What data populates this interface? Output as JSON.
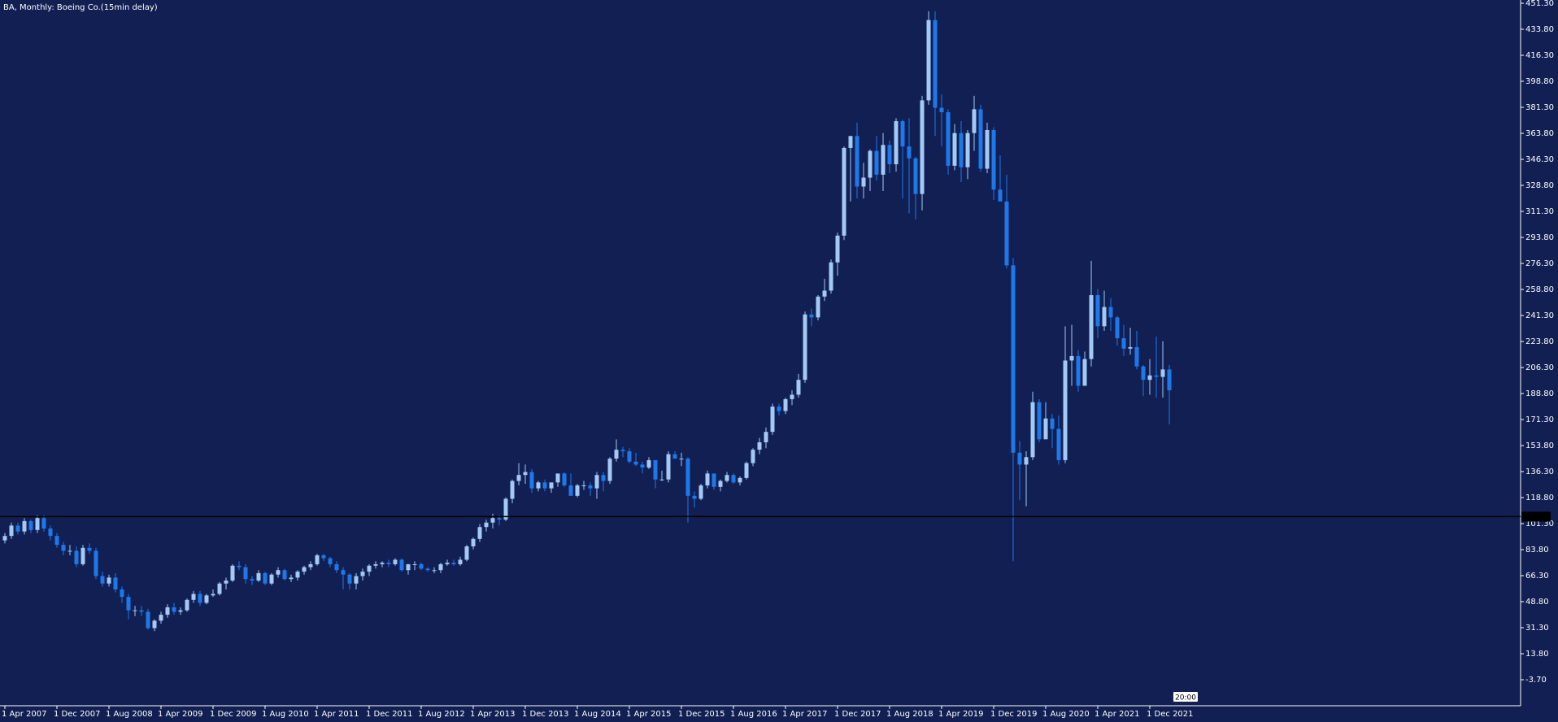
{
  "chart_data": {
    "type": "candlestick",
    "title": "BA, Monthly:  Boeing Co.(15min delay)",
    "categories": [
      "1 Apr 2007",
      null,
      null,
      null,
      null,
      null,
      null,
      null,
      "1 Dec 2007",
      null,
      null,
      null,
      null,
      null,
      null,
      null,
      "1 Aug 2008",
      null,
      null,
      null,
      null,
      null,
      null,
      null,
      "1 Apr 2009",
      null,
      null,
      null,
      null,
      null,
      null,
      null,
      "1 Dec 2009",
      null,
      null,
      null,
      null,
      null,
      null,
      null,
      "1 Aug 2010",
      null,
      null,
      null,
      null,
      null,
      null,
      null,
      "1 Apr 2011",
      null,
      null,
      null,
      null,
      null,
      null,
      null,
      "1 Dec 2011",
      null,
      null,
      null,
      null,
      null,
      null,
      null,
      "1 Aug 2012",
      null,
      null,
      null,
      null,
      null,
      null,
      null,
      "1 Apr 2013",
      null,
      null,
      null,
      null,
      null,
      null,
      null,
      "1 Dec 2013",
      null,
      null,
      null,
      null,
      null,
      null,
      null,
      "1 Aug 2014",
      null,
      null,
      null,
      null,
      null,
      null,
      null,
      "1 Apr 2015",
      null,
      null,
      null,
      null,
      null,
      null,
      null,
      "1 Dec 2015",
      null,
      null,
      null,
      null,
      null,
      null,
      null,
      "1 Aug 2016",
      null,
      null,
      null,
      null,
      null,
      null,
      null,
      "1 Apr 2017",
      null,
      null,
      null,
      null,
      null,
      null,
      null,
      "1 Dec 2017",
      null,
      null,
      null,
      null,
      null,
      null,
      null,
      "1 Aug 2018",
      null,
      null,
      null,
      null,
      null,
      null,
      null,
      "1 Apr 2019",
      null,
      null,
      null,
      null,
      null,
      null,
      null,
      "1 Dec 2019",
      null,
      null,
      null,
      null,
      null,
      null,
      null,
      "1 Aug 2020",
      null,
      null,
      null,
      null,
      null,
      null,
      null,
      "1 Apr 2021",
      null,
      null,
      null,
      null,
      null,
      null,
      null,
      "1 Dec 2021",
      null,
      null,
      null
    ],
    "open": [
      90,
      93,
      100,
      96,
      103,
      97,
      105,
      98,
      93,
      87,
      83,
      83,
      74,
      85,
      83,
      66,
      61,
      65,
      57,
      52,
      43,
      43,
      42,
      31,
      36,
      40,
      45,
      42,
      43,
      50,
      54,
      48,
      53,
      54,
      61,
      63,
      73,
      72,
      64,
      63,
      68,
      61,
      67,
      70,
      64,
      65,
      69,
      72,
      74,
      80,
      78,
      74,
      70,
      67,
      61,
      66,
      69,
      73,
      74,
      75,
      74,
      77,
      70,
      74,
      74,
      71,
      70,
      70,
      74,
      75,
      74,
      77,
      86,
      91,
      99,
      102,
      105,
      104,
      118,
      130,
      134,
      136,
      125,
      129,
      125,
      129,
      135,
      127,
      120,
      127,
      127,
      125,
      134,
      130,
      145,
      151,
      150,
      143,
      141,
      139,
      144,
      131,
      131,
      148,
      145,
      145,
      120,
      118,
      127,
      135,
      126,
      130,
      134,
      129,
      132,
      142,
      151,
      156,
      163,
      180,
      177,
      185,
      188,
      198,
      242,
      240,
      254,
      258,
      277,
      295,
      354,
      362,
      328,
      334,
      352,
      336,
      356,
      343,
      372,
      355,
      347,
      323,
      386,
      440,
      381,
      378,
      342,
      364,
      341,
      364,
      380,
      340,
      366,
      326,
      318,
      275,
      149,
      141,
      146,
      183,
      158,
      172,
      165,
      144,
      211,
      214,
      194,
      212,
      255,
      234,
      247,
      240,
      226,
      219,
      220,
      207,
      198,
      201,
      200,
      205
    ],
    "high": [
      95,
      102,
      102,
      105,
      104,
      107,
      107,
      100,
      95,
      89,
      87,
      86,
      87,
      88,
      85,
      69,
      67,
      68,
      59,
      54,
      46,
      46,
      44,
      37,
      42,
      47,
      48,
      45,
      51,
      56,
      56,
      54,
      57,
      62,
      65,
      74,
      76,
      74,
      66,
      70,
      69,
      68,
      72,
      71,
      67,
      70,
      73,
      76,
      81,
      81,
      79,
      76,
      72,
      68,
      68,
      71,
      74,
      76,
      76,
      77,
      78,
      78,
      74,
      76,
      75,
      72,
      72,
      75,
      77,
      77,
      79,
      87,
      92,
      101,
      104,
      108,
      107,
      119,
      131,
      142,
      141,
      138,
      130,
      131,
      128,
      131,
      136,
      135,
      128,
      130,
      129,
      136,
      136,
      146,
      158,
      153,
      152,
      149,
      143,
      146,
      144,
      137,
      150,
      150,
      149,
      146,
      123,
      128,
      137,
      135,
      131,
      136,
      135,
      133,
      143,
      152,
      159,
      166,
      182,
      182,
      186,
      191,
      202,
      244,
      246,
      255,
      266,
      279,
      297,
      355,
      362,
      371,
      344,
      353,
      362,
      364,
      359,
      374,
      373,
      374,
      348,
      389,
      446,
      446,
      390,
      380,
      370,
      372,
      366,
      389,
      383,
      371,
      368,
      349,
      336,
      280,
      157,
      150,
      190,
      185,
      183,
      175,
      174,
      234,
      235,
      218,
      217,
      278,
      259,
      258,
      253,
      241,
      235,
      233,
      231,
      208,
      212,
      227,
      224,
      208
    ],
    "low": [
      88,
      91,
      94,
      94,
      95,
      95,
      96,
      90,
      85,
      80,
      80,
      72,
      73,
      81,
      64,
      59,
      59,
      55,
      48,
      37,
      39,
      39,
      30,
      29,
      34,
      38,
      40,
      40,
      42,
      48,
      46,
      47,
      52,
      53,
      57,
      62,
      70,
      61,
      60,
      62,
      60,
      60,
      65,
      63,
      62,
      63,
      67,
      70,
      73,
      76,
      72,
      68,
      57,
      57,
      57,
      63,
      66,
      71,
      72,
      72,
      73,
      69,
      67,
      70,
      70,
      69,
      68,
      68,
      73,
      73,
      73,
      76,
      84,
      89,
      96,
      98,
      100,
      103,
      115,
      127,
      128,
      122,
      123,
      123,
      122,
      126,
      126,
      120,
      119,
      124,
      120,
      118,
      123,
      128,
      143,
      146,
      142,
      140,
      135,
      138,
      125,
      130,
      129,
      145,
      140,
      102,
      112,
      117,
      125,
      124,
      123,
      129,
      128,
      127,
      131,
      140,
      148,
      152,
      161,
      174,
      175,
      181,
      186,
      196,
      234,
      238,
      251,
      256,
      268,
      292,
      318,
      320,
      320,
      325,
      332,
      325,
      337,
      338,
      320,
      310,
      306,
      312,
      383,
      362,
      355,
      336,
      339,
      331,
      333,
      352,
      338,
      337,
      319,
      318,
      273,
      76,
      117,
      113,
      144,
      156,
      160,
      152,
      141,
      142,
      194,
      190,
      194,
      207,
      226,
      231,
      231,
      221,
      214,
      215,
      205,
      187,
      188,
      186,
      186,
      168
    ],
    "close": [
      93,
      100,
      96,
      103,
      97,
      105,
      98,
      93,
      87,
      83,
      83,
      74,
      85,
      83,
      66,
      61,
      65,
      57,
      52,
      43,
      43,
      42,
      31,
      36,
      40,
      45,
      42,
      43,
      50,
      54,
      48,
      53,
      54,
      61,
      63,
      73,
      72,
      64,
      63,
      68,
      61,
      67,
      70,
      64,
      65,
      69,
      72,
      74,
      80,
      78,
      74,
      70,
      67,
      61,
      66,
      69,
      73,
      74,
      75,
      74,
      77,
      70,
      74,
      74,
      71,
      70,
      70,
      74,
      75,
      74,
      77,
      86,
      91,
      99,
      102,
      105,
      104,
      118,
      130,
      134,
      136,
      125,
      129,
      125,
      129,
      135,
      127,
      120,
      127,
      127,
      125,
      134,
      130,
      145,
      151,
      150,
      143,
      141,
      139,
      144,
      131,
      131,
      148,
      145,
      145,
      120,
      118,
      127,
      135,
      126,
      130,
      134,
      129,
      132,
      142,
      151,
      156,
      163,
      180,
      177,
      185,
      188,
      198,
      242,
      240,
      254,
      258,
      277,
      295,
      354,
      362,
      328,
      334,
      352,
      336,
      356,
      343,
      372,
      355,
      347,
      323,
      386,
      440,
      381,
      378,
      342,
      364,
      341,
      364,
      380,
      340,
      366,
      326,
      318,
      275,
      149,
      141,
      146,
      183,
      158,
      172,
      165,
      144,
      211,
      214,
      194,
      212,
      255,
      234,
      247,
      240,
      226,
      219,
      220,
      207,
      198,
      201,
      200,
      205,
      191
    ],
    "up_color": "#a3c9f4",
    "down_color": "#1e78ea",
    "ylim": [
      -3.7,
      451.3
    ],
    "yticks": [
      {
        "value": 451.3,
        "label": "451.30"
      },
      {
        "value": 433.8,
        "label": "433.80"
      },
      {
        "value": 416.3,
        "label": "416.30"
      },
      {
        "value": 398.8,
        "label": "398.80"
      },
      {
        "value": 381.3,
        "label": "381.30"
      },
      {
        "value": 363.8,
        "label": "363.80"
      },
      {
        "value": 346.3,
        "label": "346.30"
      },
      {
        "value": 328.8,
        "label": "328.80"
      },
      {
        "value": 311.3,
        "label": "311.30"
      },
      {
        "value": 293.8,
        "label": "293.80"
      },
      {
        "value": 276.3,
        "label": "276.30"
      },
      {
        "value": 258.8,
        "label": "258.80"
      },
      {
        "value": 241.3,
        "label": "241.30"
      },
      {
        "value": 223.8,
        "label": "223.80"
      },
      {
        "value": 206.3,
        "label": "206.30"
      },
      {
        "value": 188.8,
        "label": "188.80"
      },
      {
        "value": 171.3,
        "label": "171.30"
      },
      {
        "value": 153.8,
        "label": "153.80"
      },
      {
        "value": 136.3,
        "label": "136.30"
      },
      {
        "value": 118.8,
        "label": "118.80"
      },
      {
        "value": 101.3,
        "label": "101.30"
      },
      {
        "value": 83.8,
        "label": "83.80"
      },
      {
        "value": 66.3,
        "label": "66.30"
      },
      {
        "value": 48.8,
        "label": "48.80"
      },
      {
        "value": 31.3,
        "label": "31.30"
      },
      {
        "value": 13.8,
        "label": "13.80"
      },
      {
        "value": -3.7,
        "label": "-3.70"
      }
    ],
    "hline": 106,
    "timer_label": "20:00"
  }
}
